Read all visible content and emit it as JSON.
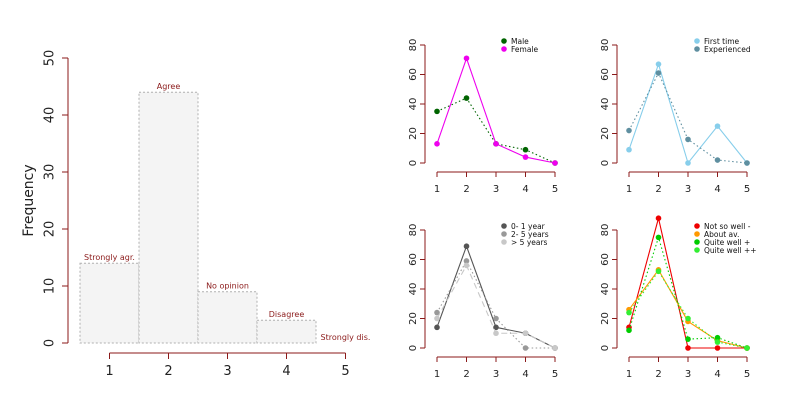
{
  "chart_data": [
    {
      "type": "bar",
      "ylabel": "Frequency",
      "categories": [
        "1",
        "2",
        "3",
        "4",
        "5"
      ],
      "bar_labels": [
        "Strongly agr.",
        "Agree",
        "No opinion",
        "Disagree",
        "Strongly dis."
      ],
      "values": [
        14,
        44,
        9,
        4,
        0
      ],
      "ylim": [
        0,
        50
      ],
      "yticks": [
        0,
        10,
        20,
        30,
        40,
        50
      ],
      "bar_fill": "#f4f4f4",
      "bar_border": "#b0b0b0",
      "label_color": "#8b1a1a",
      "axis_color": "#8b1a1a"
    },
    {
      "type": "line",
      "x": [
        1,
        2,
        3,
        4,
        5
      ],
      "ylim": [
        0,
        80
      ],
      "yticks": [
        0,
        20,
        40,
        60,
        80
      ],
      "series": [
        {
          "name": "Male",
          "values": [
            35,
            44,
            13,
            9,
            0
          ],
          "color": "#006400",
          "dash": "dotted"
        },
        {
          "name": "Female",
          "values": [
            13,
            71,
            13,
            4,
            0
          ],
          "color": "#ee00ee",
          "dash": "solid"
        }
      ]
    },
    {
      "type": "line",
      "x": [
        1,
        2,
        3,
        4,
        5
      ],
      "ylim": [
        0,
        80
      ],
      "yticks": [
        0,
        20,
        40,
        60,
        80
      ],
      "series": [
        {
          "name": "First time",
          "values": [
            9,
            67,
            0,
            25,
            0
          ],
          "color": "#87ceeb",
          "dash": "solid"
        },
        {
          "name": "Experienced",
          "values": [
            22,
            61,
            16,
            2,
            0
          ],
          "color": "#5f8fa0",
          "dash": "dotted"
        }
      ]
    },
    {
      "type": "line",
      "x": [
        1,
        2,
        3,
        4,
        5
      ],
      "ylim": [
        0,
        80
      ],
      "yticks": [
        0,
        20,
        40,
        60,
        80
      ],
      "series": [
        {
          "name": "0- 1 year",
          "values": [
            14,
            69,
            14,
            10,
            0
          ],
          "color": "#555555",
          "dash": "solid"
        },
        {
          "name": "2- 5 years",
          "values": [
            24,
            59,
            20,
            0,
            0
          ],
          "color": "#999999",
          "dash": "dotted"
        },
        {
          "name": "> 5 years",
          "values": [
            20,
            56,
            10,
            10,
            0
          ],
          "color": "#c8c8c8",
          "dash": "dashed"
        }
      ]
    },
    {
      "type": "line",
      "x": [
        1,
        2,
        3,
        4,
        5
      ],
      "ylim": [
        0,
        80
      ],
      "yticks": [
        0,
        20,
        40,
        60,
        80
      ],
      "series": [
        {
          "name": "Not so well -",
          "values": [
            14,
            88,
            0,
            0,
            0
          ],
          "color": "#ee0000",
          "dash": "solid"
        },
        {
          "name": "About av.",
          "values": [
            26,
            53,
            18,
            5,
            0
          ],
          "color": "#ff9900",
          "dash": "solid"
        },
        {
          "name": "Quite well +",
          "values": [
            12,
            75,
            6,
            7,
            0
          ],
          "color": "#00cc00",
          "dash": "dotted"
        },
        {
          "name": "Quite well ++",
          "values": [
            24,
            52,
            20,
            4,
            0
          ],
          "color": "#33ee33",
          "dash": "dotted"
        }
      ]
    }
  ]
}
